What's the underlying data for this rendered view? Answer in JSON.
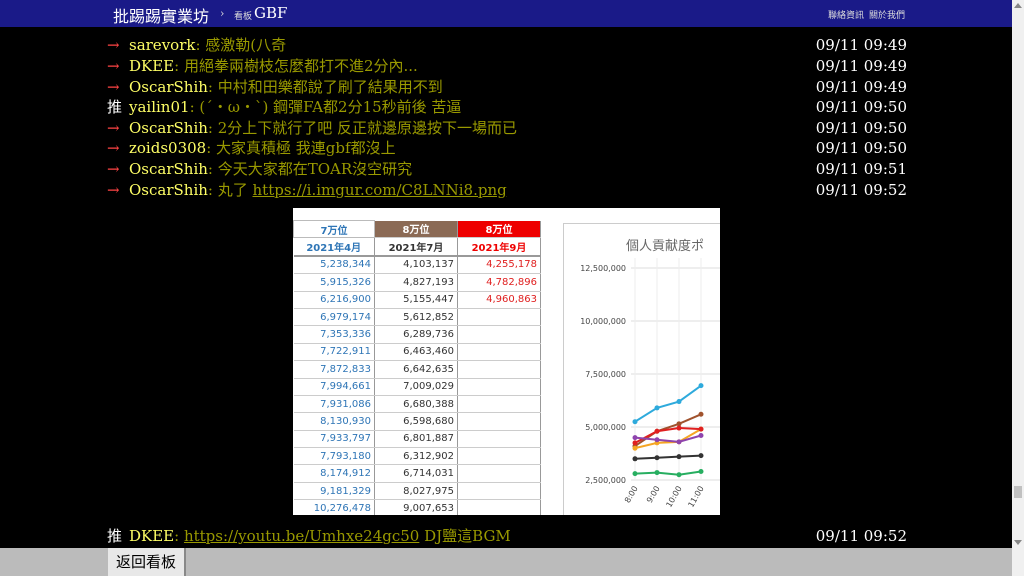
{
  "header": {
    "board_title": "批踢踢實業坊",
    "sep": "›",
    "crumb_label": "看板",
    "board_name": "GBF",
    "links": [
      "聯絡資訊",
      "關於我們"
    ]
  },
  "pushes": [
    {
      "tag": "→",
      "user": "sarevork",
      "content": ": 感激勒(八奇",
      "time": "09/11 09:49"
    },
    {
      "tag": "→",
      "user": "DKEE",
      "content": ": 用絕拳兩樹枝怎麼都打不進2分內...",
      "time": "09/11 09:49"
    },
    {
      "tag": "→",
      "user": "OscarShih",
      "content": ": 中村和田樂都說了刷了結果用不到",
      "time": "09/11 09:49"
    },
    {
      "tag": "推",
      "user": "yailin01",
      "content": ": (´・ω・`) 鋼彈FA都2分15秒前後 苦逼",
      "time": "09/11 09:50"
    },
    {
      "tag": "→",
      "user": "OscarShih",
      "content": ": 2分上下就行了吧 反正就邊原邊按下一場而已",
      "time": "09/11 09:50"
    },
    {
      "tag": "→",
      "user": "zoids0308",
      "content": ": 大家真積極 我連gbf都沒上",
      "time": "09/11 09:50"
    },
    {
      "tag": "→",
      "user": "OscarShih",
      "content": ": 今天大家都在TOAR沒空研究",
      "time": "09/11 09:51"
    },
    {
      "tag": "→",
      "user": "OscarShih",
      "content_prefix": ": 丸了 ",
      "link": "https://i.imgur.com/C8LNNi8.png",
      "time": "09/11 09:52"
    },
    {
      "tag": "推",
      "user": "DKEE",
      "content_prefix": ": ",
      "link": "https://youtu.be/Umhxe24gc50",
      "content_suffix": " DJ鹽這BGM",
      "time": "09/11 09:52"
    }
  ],
  "image": {
    "table": {
      "head1": [
        "7万位",
        "8万位",
        "8万位"
      ],
      "head2": [
        "2021年4月",
        "2021年7月",
        "2021年9月"
      ],
      "rows": [
        [
          "5,238,344",
          "4,103,137",
          "4,255,178"
        ],
        [
          "5,915,326",
          "4,827,193",
          "4,782,896"
        ],
        [
          "6,216,900",
          "5,155,447",
          "4,960,863"
        ],
        [
          "6,979,174",
          "5,612,852",
          ""
        ],
        [
          "7,353,336",
          "6,289,736",
          ""
        ],
        [
          "7,722,911",
          "6,463,460",
          ""
        ],
        [
          "7,872,833",
          "6,642,635",
          ""
        ],
        [
          "7,994,661",
          "7,009,029",
          ""
        ],
        [
          "7,931,086",
          "6,680,388",
          ""
        ],
        [
          "8,130,930",
          "6,598,680",
          ""
        ],
        [
          "7,933,797",
          "6,801,887",
          ""
        ],
        [
          "7,793,180",
          "6,312,902",
          ""
        ],
        [
          "8,174,912",
          "6,714,031",
          ""
        ],
        [
          "9,181,329",
          "8,027,975",
          ""
        ],
        [
          "10,276,478",
          "9,007,653",
          ""
        ]
      ]
    },
    "chart_title": "個人貢献度ポ",
    "colors": {
      "s1": "#2eaadc",
      "s2": "#a0522d",
      "s3": "#f5a623",
      "s4": "#e02020",
      "s5": "#8e44ad",
      "s6": "#27ae60",
      "s7": "#333333"
    }
  },
  "chart_data": {
    "type": "line",
    "title": "個人貢献度ポ",
    "x": [
      "8:00",
      "9:00",
      "10:00",
      "11:00"
    ],
    "ylim": [
      2500000,
      12500000
    ],
    "yticks": [
      "12,500,000",
      "10,000,000",
      "7,500,000",
      "5,000,000",
      "2,500,000"
    ],
    "series": [
      {
        "values": [
          5250000,
          5900000,
          6200000,
          6950000
        ]
      },
      {
        "values": [
          4100000,
          4800000,
          5150000,
          5600000
        ]
      },
      {
        "values": [
          4000000,
          4250000,
          4300000,
          4900000
        ]
      },
      {
        "values": [
          4250000,
          4800000,
          4950000,
          4900000
        ]
      },
      {
        "values": [
          4500000,
          4400000,
          4300000,
          4600000
        ]
      },
      {
        "values": [
          2800000,
          2850000,
          2750000,
          2900000
        ]
      },
      {
        "values": [
          3500000,
          3550000,
          3600000,
          3650000
        ]
      }
    ]
  },
  "footer": {
    "back_label": "返回看板"
  }
}
